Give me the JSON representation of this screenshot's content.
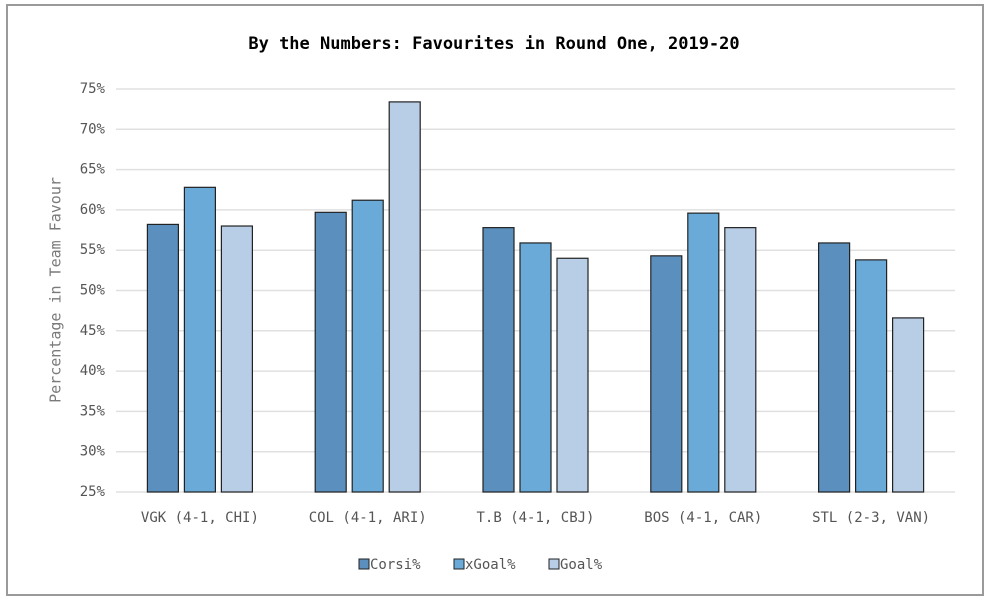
{
  "chart_data": {
    "type": "bar",
    "title": "By the Numbers: Favourites in Round One, 2019-20",
    "y_label": "Percentage in Team Favour",
    "categories": [
      "VGK (4-1, CHI)",
      "COL (4-1, ARI)",
      "T.B (4-1, CBJ)",
      "BOS (4-1, CAR)",
      "STL (2-3, VAN)"
    ],
    "series": [
      {
        "name": "Corsi%",
        "color": "#5b8fbd",
        "values": [
          58.2,
          59.7,
          57.8,
          54.3,
          55.9
        ]
      },
      {
        "name": "xGoal%",
        "color": "#6aaad9",
        "values": [
          62.8,
          61.2,
          55.9,
          59.6,
          53.8
        ]
      },
      {
        "name": "Goal%",
        "color": "#b8cde6",
        "values": [
          58.0,
          73.4,
          54.0,
          57.8,
          46.6
        ]
      }
    ],
    "ylim": [
      25,
      75
    ],
    "yticks": [
      {
        "value": 25,
        "label": "25%"
      },
      {
        "value": 30,
        "label": "30%"
      },
      {
        "value": 35,
        "label": "35%"
      },
      {
        "value": 40,
        "label": "40%"
      },
      {
        "value": 45,
        "label": "45%"
      },
      {
        "value": 50,
        "label": "50%"
      },
      {
        "value": 55,
        "label": "55%"
      },
      {
        "value": 60,
        "label": "60%"
      },
      {
        "value": 65,
        "label": "65%"
      },
      {
        "value": 70,
        "label": "70%"
      },
      {
        "value": 75,
        "label": "75%"
      }
    ],
    "grid": true,
    "legend": "bottom"
  }
}
